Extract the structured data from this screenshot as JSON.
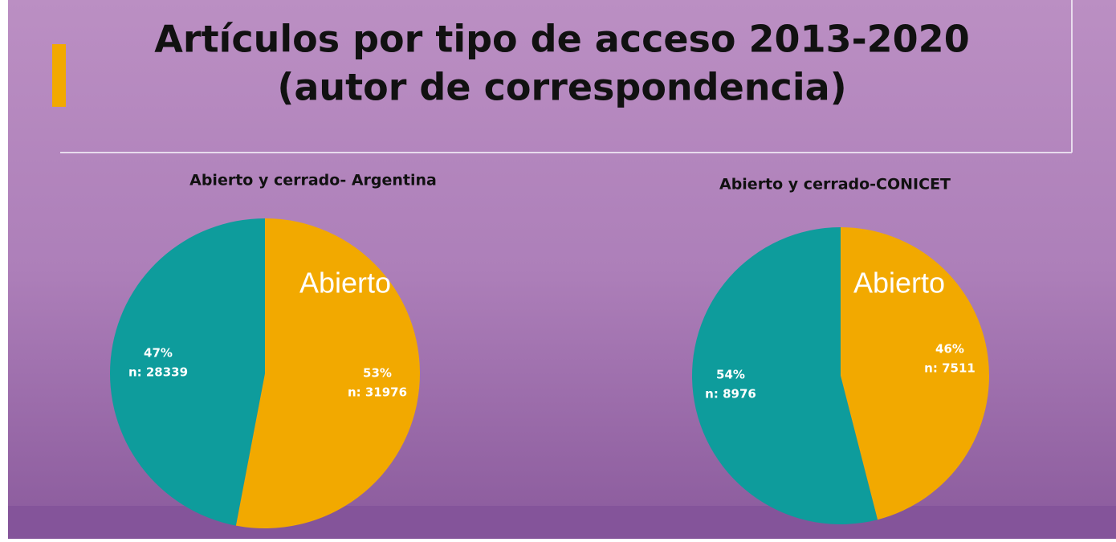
{
  "title": [
    "Artículos por tipo de acceso 2013-2020",
    "(autor de correspondencia)"
  ],
  "chart_data": [
    {
      "type": "pie",
      "title": "Abierto y cerrado- Argentina",
      "categories": [
        "Abierto",
        null
      ],
      "values": [
        53,
        47
      ],
      "value_labels": [
        "53%",
        "47%"
      ],
      "count_labels": [
        "n: 31976",
        "n: 28339"
      ],
      "colors": [
        "#f2a900",
        "#0e9c9c"
      ]
    },
    {
      "type": "pie",
      "title": "Abierto y cerrado-CONICET",
      "categories": [
        "Abierto",
        null
      ],
      "values": [
        46,
        54
      ],
      "value_labels": [
        "46%",
        "54%"
      ],
      "count_labels": [
        "n: 7511",
        "n: 8976"
      ],
      "colors": [
        "#f2a900",
        "#0e9c9c"
      ]
    }
  ]
}
